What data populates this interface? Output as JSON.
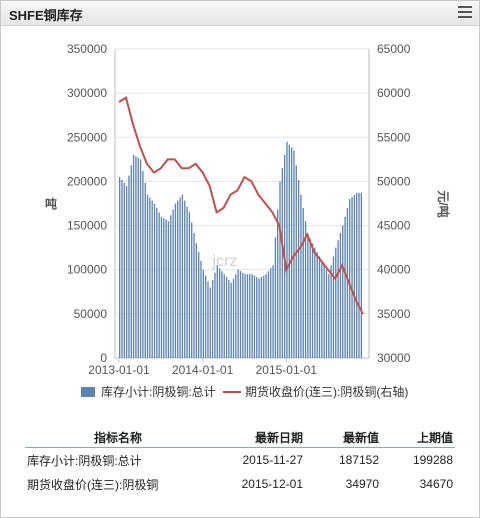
{
  "header": {
    "title": "SHFE铜库存",
    "menu_icon": "hamburger-menu-icon"
  },
  "watermark": "jcrz",
  "colors": {
    "bar": "#5b84b3",
    "line": "#c0504d",
    "grid": "#e3e3e3",
    "axis": "#bfbfbf"
  },
  "chart_data": {
    "type": "bar+line",
    "title": "SHFE铜库存",
    "x_tick_labels": [
      "2013-01-01",
      "2014-01-01",
      "2015-01-01"
    ],
    "x_range": [
      "2013-01-01",
      "2015-12-01"
    ],
    "left_axis": {
      "label": "吨",
      "range": [
        0,
        350000
      ],
      "ticks": [
        0,
        50000,
        100000,
        150000,
        200000,
        250000,
        300000,
        350000
      ]
    },
    "right_axis": {
      "label": "元/吨",
      "range": [
        30000,
        65000
      ],
      "ticks": [
        30000,
        35000,
        40000,
        45000,
        50000,
        55000,
        60000,
        65000
      ]
    },
    "grid": true,
    "legend_position": "bottom",
    "series": [
      {
        "name": "库存小计:阴极铜:总计",
        "type": "bar",
        "axis": "left",
        "x": [
          "2013-01",
          "2013-02",
          "2013-03",
          "2013-04",
          "2013-05",
          "2013-06",
          "2013-07",
          "2013-08",
          "2013-09",
          "2013-10",
          "2013-11",
          "2013-12",
          "2014-01",
          "2014-02",
          "2014-03",
          "2014-04",
          "2014-05",
          "2014-06",
          "2014-07",
          "2014-08",
          "2014-09",
          "2014-10",
          "2014-11",
          "2014-12",
          "2015-01",
          "2015-02",
          "2015-03",
          "2015-04",
          "2015-05",
          "2015-06",
          "2015-07",
          "2015-08",
          "2015-09",
          "2015-10",
          "2015-11"
        ],
        "values": [
          205000,
          195000,
          230000,
          225000,
          185000,
          175000,
          160000,
          155000,
          175000,
          185000,
          165000,
          130000,
          100000,
          80000,
          105000,
          95000,
          85000,
          100000,
          95000,
          95000,
          90000,
          95000,
          105000,
          200000,
          245000,
          235000,
          185000,
          140000,
          125000,
          110000,
          95000,
          125000,
          150000,
          180000,
          187152
        ]
      },
      {
        "name": "期货收盘价(连三):阴极铜(右轴)",
        "type": "line",
        "axis": "right",
        "x": [
          "2013-01",
          "2013-02",
          "2013-03",
          "2013-04",
          "2013-05",
          "2013-06",
          "2013-07",
          "2013-08",
          "2013-09",
          "2013-10",
          "2013-11",
          "2013-12",
          "2014-01",
          "2014-02",
          "2014-03",
          "2014-04",
          "2014-05",
          "2014-06",
          "2014-07",
          "2014-08",
          "2014-09",
          "2014-10",
          "2014-11",
          "2014-12",
          "2015-01",
          "2015-02",
          "2015-03",
          "2015-04",
          "2015-05",
          "2015-06",
          "2015-07",
          "2015-08",
          "2015-09",
          "2015-10",
          "2015-11",
          "2015-12"
        ],
        "values": [
          59000,
          59500,
          56500,
          54000,
          52000,
          51000,
          51500,
          52500,
          52500,
          51500,
          51500,
          52000,
          51000,
          49500,
          46500,
          47000,
          48500,
          49000,
          50500,
          50000,
          48500,
          47500,
          46500,
          45000,
          40000,
          41500,
          42500,
          44000,
          42000,
          41000,
          40000,
          39000,
          40500,
          38500,
          36500,
          34970
        ]
      }
    ],
    "legend": [
      "库存小计:阴极铜:总计",
      "期货收盘价(连三):阴极铜(右轴)"
    ]
  },
  "table": {
    "headers": [
      "指标名称",
      "最新日期",
      "最新值",
      "上期值"
    ],
    "rows": [
      [
        "库存小计:阴极铜:总计",
        "2015-11-27",
        "187152",
        "199288"
      ],
      [
        "期货收盘价(连三):阴极铜",
        "2015-12-01",
        "34970",
        "34670"
      ]
    ]
  }
}
